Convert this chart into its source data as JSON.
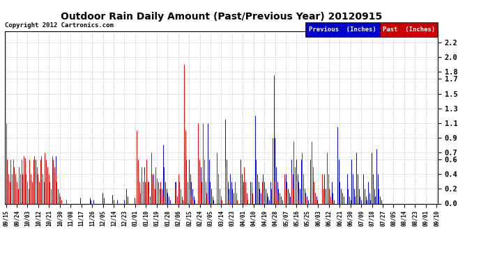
{
  "title": "Outdoor Rain Daily Amount (Past/Previous Year) 20120915",
  "copyright_text": "Copyright 2012 Cartronics.com",
  "legend_previous_label": "Previous  (Inches)",
  "legend_past_label": "Past  (Inches)",
  "previous_color": "#0000ff",
  "past_color": "#ff0000",
  "legend_previous_bg": "#0000cc",
  "legend_past_bg": "#cc0000",
  "yticks": [
    0.0,
    0.2,
    0.4,
    0.6,
    0.7,
    0.9,
    1.1,
    1.3,
    1.5,
    1.7,
    1.8,
    2.0,
    2.2
  ],
  "ymin": 0.0,
  "ymax": 2.35,
  "title_fontsize": 11,
  "background_color": "#ffffff",
  "grid_color": "#bbbbbb",
  "start_date": "2011-09-15",
  "num_days": 366,
  "xtick_labels": [
    "09/15",
    "09/24",
    "10/03",
    "10/12",
    "10/21",
    "10/30",
    "11/08",
    "11/17",
    "11/26",
    "12/05",
    "12/14",
    "12/23",
    "01/01",
    "01/10",
    "01/19",
    "01/28",
    "02/06",
    "02/15",
    "02/24",
    "03/05",
    "03/14",
    "03/23",
    "04/01",
    "04/10",
    "04/19",
    "04/28",
    "05/07",
    "05/16",
    "05/25",
    "06/03",
    "06/12",
    "06/21",
    "06/30",
    "07/09",
    "07/18",
    "07/27",
    "08/05",
    "08/14",
    "08/23",
    "09/01",
    "09/10"
  ],
  "prev_rain": [
    0.25,
    0.1,
    0.05,
    0.15,
    0.08,
    0.3,
    0.05,
    0.0,
    0.0,
    0.05,
    0.0,
    0.2,
    0.1,
    0.0,
    0.05,
    0.0,
    0.62,
    0.15,
    0.05,
    0.0,
    0.0,
    0.0,
    0.0,
    0.0,
    0.05,
    0.6,
    0.12,
    0.05,
    0.0,
    0.0,
    0.05,
    0.0,
    0.0,
    0.65,
    0.08,
    0.0,
    0.05,
    0.0,
    0.0,
    0.0,
    0.0,
    0.0,
    0.65,
    0.3,
    0.08,
    0.0,
    0.0,
    0.0,
    0.0,
    0.0,
    0.0,
    0.05,
    0.0,
    0.0,
    0.0,
    0.0,
    0.0,
    0.0,
    0.0,
    0.0,
    0.0,
    0.0,
    0.0,
    0.08,
    0.0,
    0.0,
    0.0,
    0.0,
    0.0,
    0.0,
    0.0,
    0.08,
    0.05,
    0.0,
    0.05,
    0.0,
    0.0,
    0.0,
    0.0,
    0.0,
    0.0,
    0.0,
    0.15,
    0.08,
    0.0,
    0.0,
    0.0,
    0.0,
    0.0,
    0.0,
    0.12,
    0.05,
    0.0,
    0.0,
    0.05,
    0.0,
    0.0,
    0.0,
    0.0,
    0.0,
    0.05,
    0.0,
    0.2,
    0.1,
    0.0,
    0.0,
    0.0,
    0.0,
    0.0,
    0.08,
    0.0,
    0.0,
    0.0,
    0.0,
    0.0,
    0.0,
    0.0,
    0.5,
    0.12,
    0.05,
    0.0,
    0.3,
    0.1,
    0.2,
    0.15,
    0.4,
    0.1,
    0.05,
    0.0,
    0.3,
    0.2,
    0.15,
    0.1,
    0.8,
    0.5,
    0.3,
    0.2,
    0.15,
    0.1,
    0.05,
    0.0,
    0.0,
    0.0,
    0.2,
    0.3,
    0.1,
    0.05,
    0.0,
    0.0,
    0.0,
    0.0,
    0.8,
    0.4,
    0.2,
    0.1,
    0.6,
    0.4,
    0.3,
    0.2,
    0.1,
    0.05,
    0.0,
    0.0,
    0.0,
    0.0,
    0.5,
    0.3,
    0.2,
    0.1,
    0.05,
    0.0,
    1.1,
    0.6,
    0.3,
    0.2,
    0.1,
    0.05,
    0.0,
    0.0,
    0.6,
    0.3,
    0.15,
    0.05,
    0.0,
    0.0,
    0.0,
    1.15,
    0.6,
    0.3,
    0.2,
    0.4,
    0.3,
    0.2,
    0.15,
    0.1,
    0.05,
    0.0,
    0.0,
    0.0,
    0.6,
    0.4,
    0.3,
    0.2,
    0.15,
    0.1,
    0.05,
    0.0,
    0.3,
    0.2,
    0.0,
    0.0,
    1.2,
    0.6,
    0.4,
    0.3,
    0.2,
    0.15,
    0.1,
    0.4,
    0.3,
    0.2,
    0.15,
    0.1,
    0.05,
    0.3,
    0.2,
    0.15,
    1.75,
    0.9,
    0.5,
    0.3,
    0.2,
    0.15,
    0.1,
    0.05,
    0.0,
    0.0,
    0.4,
    0.3,
    0.2,
    0.15,
    0.1,
    0.6,
    0.4,
    0.3,
    0.2,
    0.6,
    0.4,
    0.3,
    0.2,
    0.6,
    0.4,
    0.3,
    0.2,
    0.15,
    0.1,
    0.05,
    0.0,
    0.6,
    0.4,
    0.3,
    0.2,
    0.15,
    0.1,
    0.05,
    0.0,
    0.0,
    0.0,
    0.0,
    0.0,
    0.4,
    0.2,
    0.1,
    0.05,
    0.0,
    0.0,
    0.3,
    0.15,
    0.05,
    0.0,
    0.0,
    1.05,
    0.6,
    0.3,
    0.2,
    0.15,
    0.1,
    0.0,
    0.0,
    0.4,
    0.2,
    0.1,
    0.05,
    0.6,
    0.4,
    0.2,
    0.1,
    0.7,
    0.4,
    0.2,
    0.1,
    0.05,
    0.0,
    0.4,
    0.2,
    0.1,
    0.05,
    0.3,
    0.15,
    0.05,
    0.7,
    0.4,
    0.2,
    0.1,
    0.75,
    0.4,
    0.2,
    0.1,
    0.05,
    0.0,
    0.0,
    0.0,
    0.0,
    0.0,
    0.0,
    0.0,
    0.0,
    0.0,
    0.0,
    0.0,
    0.0,
    0.0,
    0.0,
    0.0,
    0.0,
    0.0,
    0.0,
    0.0,
    0.0,
    0.0
  ],
  "past_rain": [
    1.1,
    0.6,
    0.4,
    0.3,
    0.6,
    0.4,
    0.6,
    0.5,
    0.4,
    0.3,
    0.2,
    0.5,
    0.4,
    0.6,
    0.4,
    0.65,
    0.6,
    0.4,
    0.3,
    0.2,
    0.6,
    0.4,
    0.3,
    0.6,
    0.65,
    0.3,
    0.5,
    0.4,
    0.3,
    0.6,
    0.65,
    0.4,
    0.3,
    0.7,
    0.6,
    0.5,
    0.4,
    0.3,
    0.2,
    0.65,
    0.6,
    0.5,
    0.4,
    0.3,
    0.2,
    0.15,
    0.1,
    0.05,
    0.0,
    0.0,
    0.0,
    0.05,
    0.0,
    0.0,
    0.0,
    0.0,
    0.0,
    0.0,
    0.0,
    0.0,
    0.0,
    0.0,
    0.0,
    0.0,
    0.0,
    0.0,
    0.0,
    0.0,
    0.0,
    0.0,
    0.0,
    0.0,
    0.0,
    0.0,
    0.0,
    0.0,
    0.0,
    0.0,
    0.0,
    0.0,
    0.0,
    0.0,
    0.0,
    0.0,
    0.0,
    0.0,
    0.0,
    0.0,
    0.0,
    0.0,
    0.0,
    0.0,
    0.0,
    0.0,
    0.0,
    0.0,
    0.0,
    0.0,
    0.0,
    0.0,
    0.0,
    0.0,
    0.0,
    0.0,
    0.0,
    0.0,
    0.0,
    0.0,
    0.0,
    0.0,
    0.0,
    1.0,
    0.6,
    0.3,
    0.15,
    0.5,
    0.3,
    0.4,
    0.3,
    0.6,
    0.3,
    0.15,
    0.05,
    0.7,
    0.4,
    0.3,
    0.2,
    0.5,
    0.35,
    0.2,
    0.15,
    0.3,
    0.2,
    0.1,
    0.05,
    0.0,
    0.0,
    0.0,
    0.0,
    0.0,
    0.0,
    0.0,
    0.0,
    0.3,
    0.2,
    0.1,
    0.4,
    0.3,
    0.2,
    0.1,
    0.05,
    1.9,
    1.0,
    0.6,
    0.3,
    0.2,
    0.15,
    0.1,
    0.05,
    0.0,
    0.0,
    0.0,
    0.0,
    1.1,
    0.6,
    0.3,
    0.15,
    1.1,
    0.6,
    0.3,
    0.15,
    0.05,
    0.0,
    0.0,
    0.0,
    0.0,
    0.0,
    0.0,
    0.0,
    0.7,
    0.4,
    0.2,
    0.1,
    0.05,
    0.0,
    0.0,
    0.5,
    0.3,
    0.15,
    0.05,
    0.0,
    0.0,
    0.0,
    0.0,
    0.3,
    0.15,
    0.05,
    0.0,
    0.0,
    0.0,
    0.0,
    0.0,
    0.5,
    0.3,
    0.15,
    0.05,
    0.0,
    0.0,
    0.3,
    0.15,
    0.0,
    0.0,
    0.0,
    0.0,
    0.0,
    0.0,
    0.0,
    0.3,
    0.15,
    0.05,
    0.0,
    0.0,
    0.0,
    0.0,
    0.0,
    0.0,
    0.9,
    0.5,
    0.3,
    0.15,
    0.05,
    0.0,
    0.0,
    0.0,
    0.0,
    0.0,
    0.4,
    0.2,
    0.1,
    0.05,
    0.0,
    0.0,
    0.4,
    0.2,
    0.85,
    0.5,
    0.3,
    0.15,
    0.05,
    0.0,
    0.0,
    0.7,
    0.4,
    0.2,
    0.1,
    0.05,
    0.0,
    0.0,
    0.0,
    0.85,
    0.5,
    0.3,
    0.15,
    0.05,
    0.0,
    0.0,
    0.0,
    0.0,
    0.4,
    0.2,
    0.1,
    0.05,
    0.7,
    0.4,
    0.2,
    0.1,
    0.05,
    0.0,
    0.0,
    0.0,
    0.0,
    0.0,
    0.0,
    0.0,
    0.0,
    0.0,
    0.0,
    0.0,
    0.0,
    0.0,
    0.0,
    0.0,
    0.0,
    0.0,
    0.0,
    0.0,
    0.0,
    0.0,
    0.0,
    0.0,
    0.0,
    0.0,
    0.0,
    0.0,
    0.0,
    0.0,
    0.0,
    0.0,
    0.0,
    0.0,
    0.0,
    0.0,
    0.0,
    0.0,
    0.0,
    0.0,
    0.0,
    0.0,
    0.0,
    0.0,
    0.0,
    0.0,
    0.0,
    0.0,
    0.0,
    0.0,
    0.0,
    0.0,
    0.0,
    0.0,
    0.0,
    0.0,
    0.0,
    0.0,
    0.0,
    0.0,
    0.0,
    0.0,
    0.0,
    0.0,
    0.0,
    0.0
  ]
}
